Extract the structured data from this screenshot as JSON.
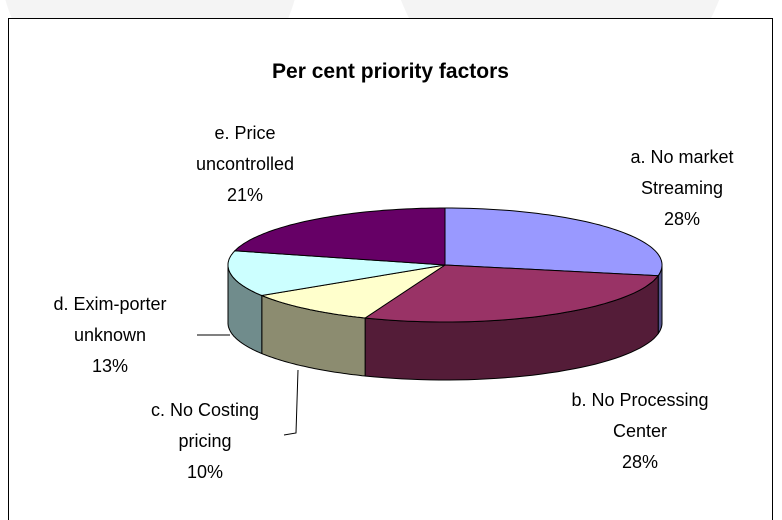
{
  "chart_data": {
    "type": "pie3d",
    "title": "Per cent priority factors",
    "categories": [
      "a. No market Streaming",
      "b. No Processing Center",
      "c. No Costing pricing",
      "d. Exim-porter unknown",
      "e. Price uncontrolled"
    ],
    "values": [
      28,
      28,
      10,
      13,
      21
    ],
    "value_labels": [
      "28%",
      "28%",
      "10%",
      "13%",
      "21%"
    ],
    "colors": [
      "#9999ff",
      "#993366",
      "#ffffcc",
      "#ccffff",
      "#660066"
    ]
  }
}
